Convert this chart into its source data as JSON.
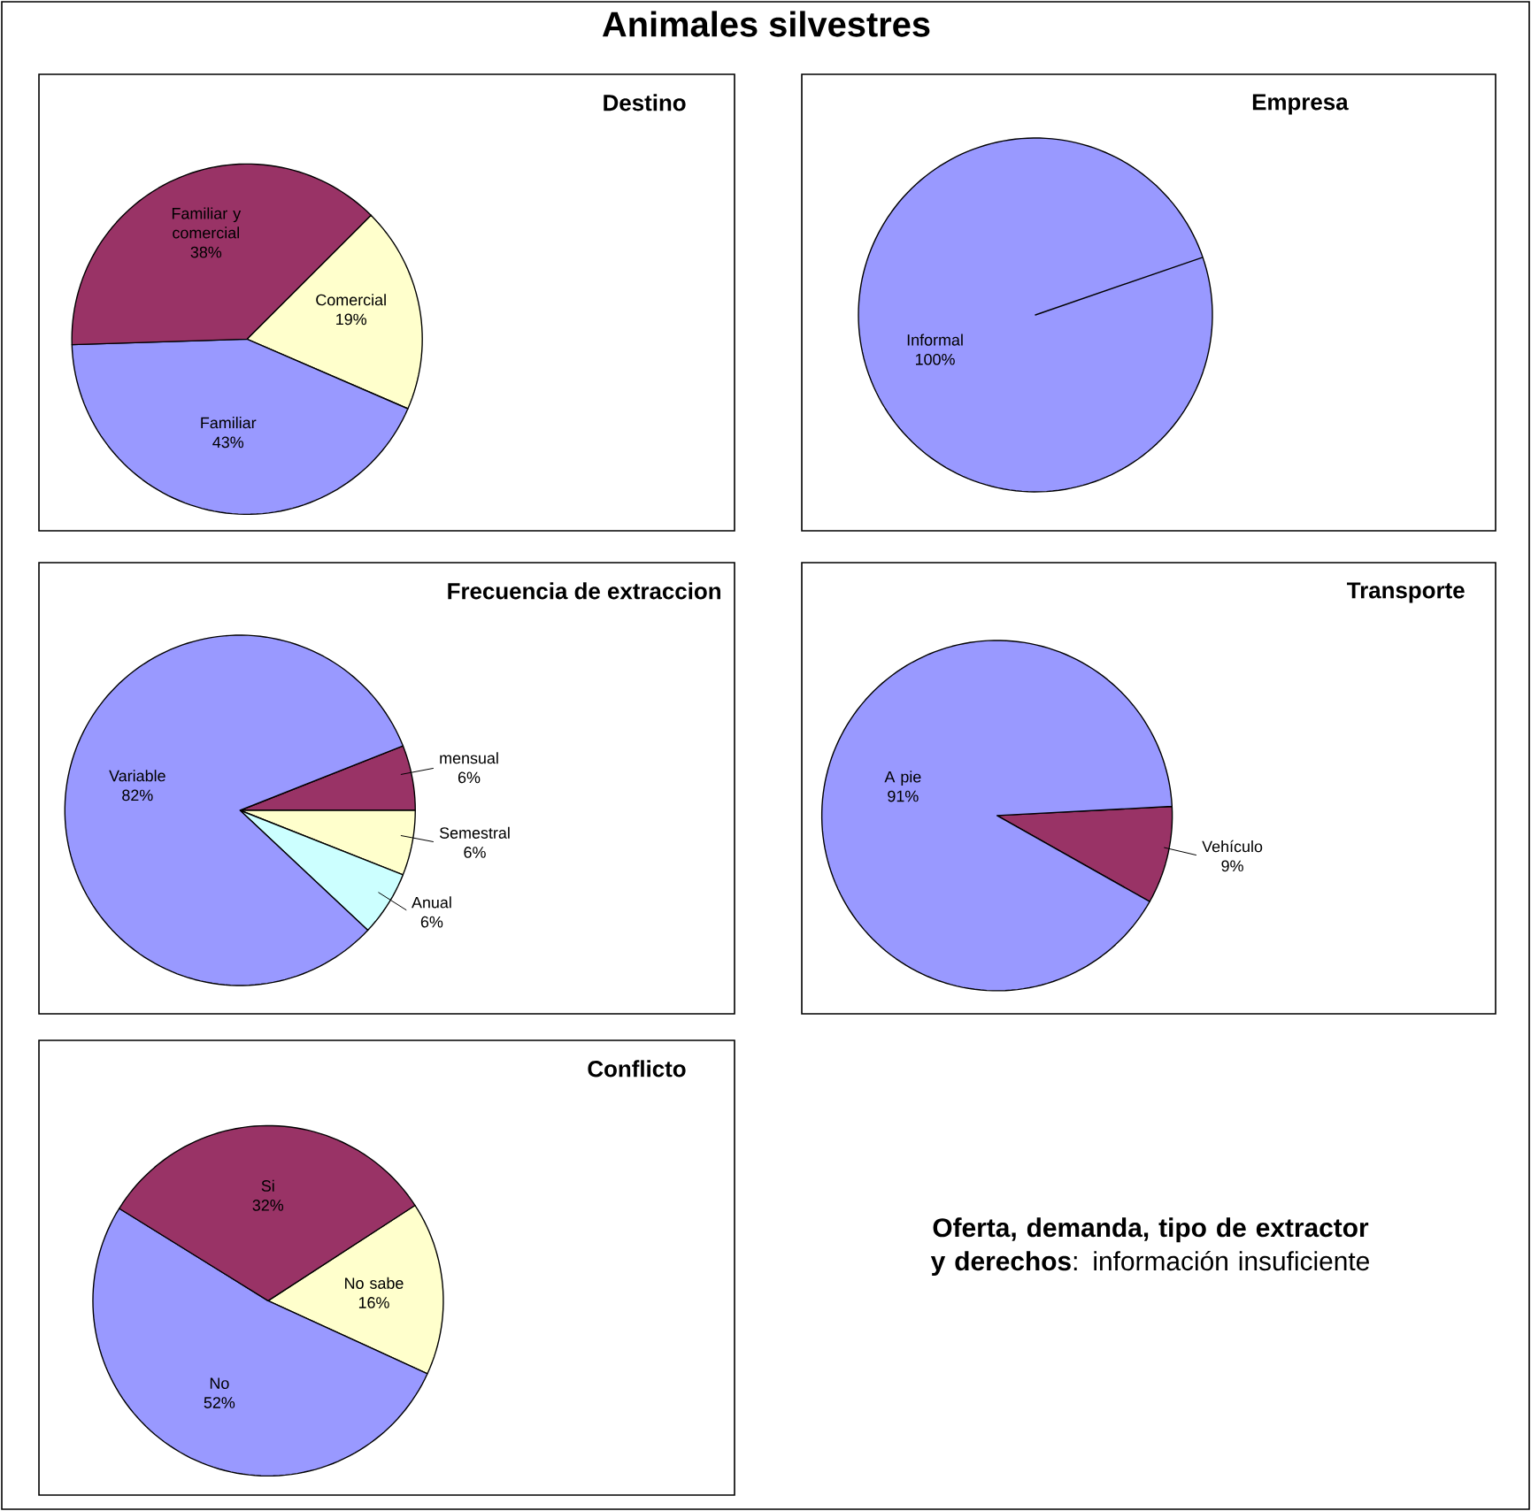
{
  "chart_data": [
    {
      "type": "pie",
      "title": "Destino",
      "categories": [
        "Comercial",
        "Familiar",
        "Familiar y comercial"
      ],
      "values": [
        19,
        43,
        38
      ],
      "value_labels": [
        "19%",
        "43%",
        "38%"
      ],
      "colors": [
        "#ffffcc",
        "#9999ff",
        "#993366"
      ]
    },
    {
      "type": "pie",
      "title": "Empresa",
      "categories": [
        "Informal"
      ],
      "values": [
        100
      ],
      "value_labels": [
        "100%"
      ],
      "colors": [
        "#9999ff"
      ]
    },
    {
      "type": "pie",
      "title": "Frecuencia de extraccion",
      "categories": [
        "mensual",
        "Semestral",
        "Anual",
        "Variable"
      ],
      "values": [
        6,
        6,
        6,
        82
      ],
      "value_labels": [
        "6%",
        "6%",
        "6%",
        "82%"
      ],
      "colors": [
        "#993366",
        "#ffffcc",
        "#ccffff",
        "#9999ff"
      ]
    },
    {
      "type": "pie",
      "title": "Transporte",
      "categories": [
        "Vehículo",
        "A pie"
      ],
      "values": [
        9,
        91
      ],
      "value_labels": [
        "9%",
        "91%"
      ],
      "colors": [
        "#993366",
        "#9999ff"
      ]
    },
    {
      "type": "pie",
      "title": "Conflicto",
      "categories": [
        "No sabe",
        "No",
        "Si"
      ],
      "values": [
        16,
        52,
        32
      ],
      "value_labels": [
        "16%",
        "52%",
        "32%"
      ],
      "colors": [
        "#ffffcc",
        "#9999ff",
        "#993366"
      ]
    },
    {
      "type": "other",
      "title": "Animales silvestres",
      "annotations": [
        "**Oferta, demanda, tipo de extractor y derechos**: información insuficiente"
      ]
    }
  ]
}
